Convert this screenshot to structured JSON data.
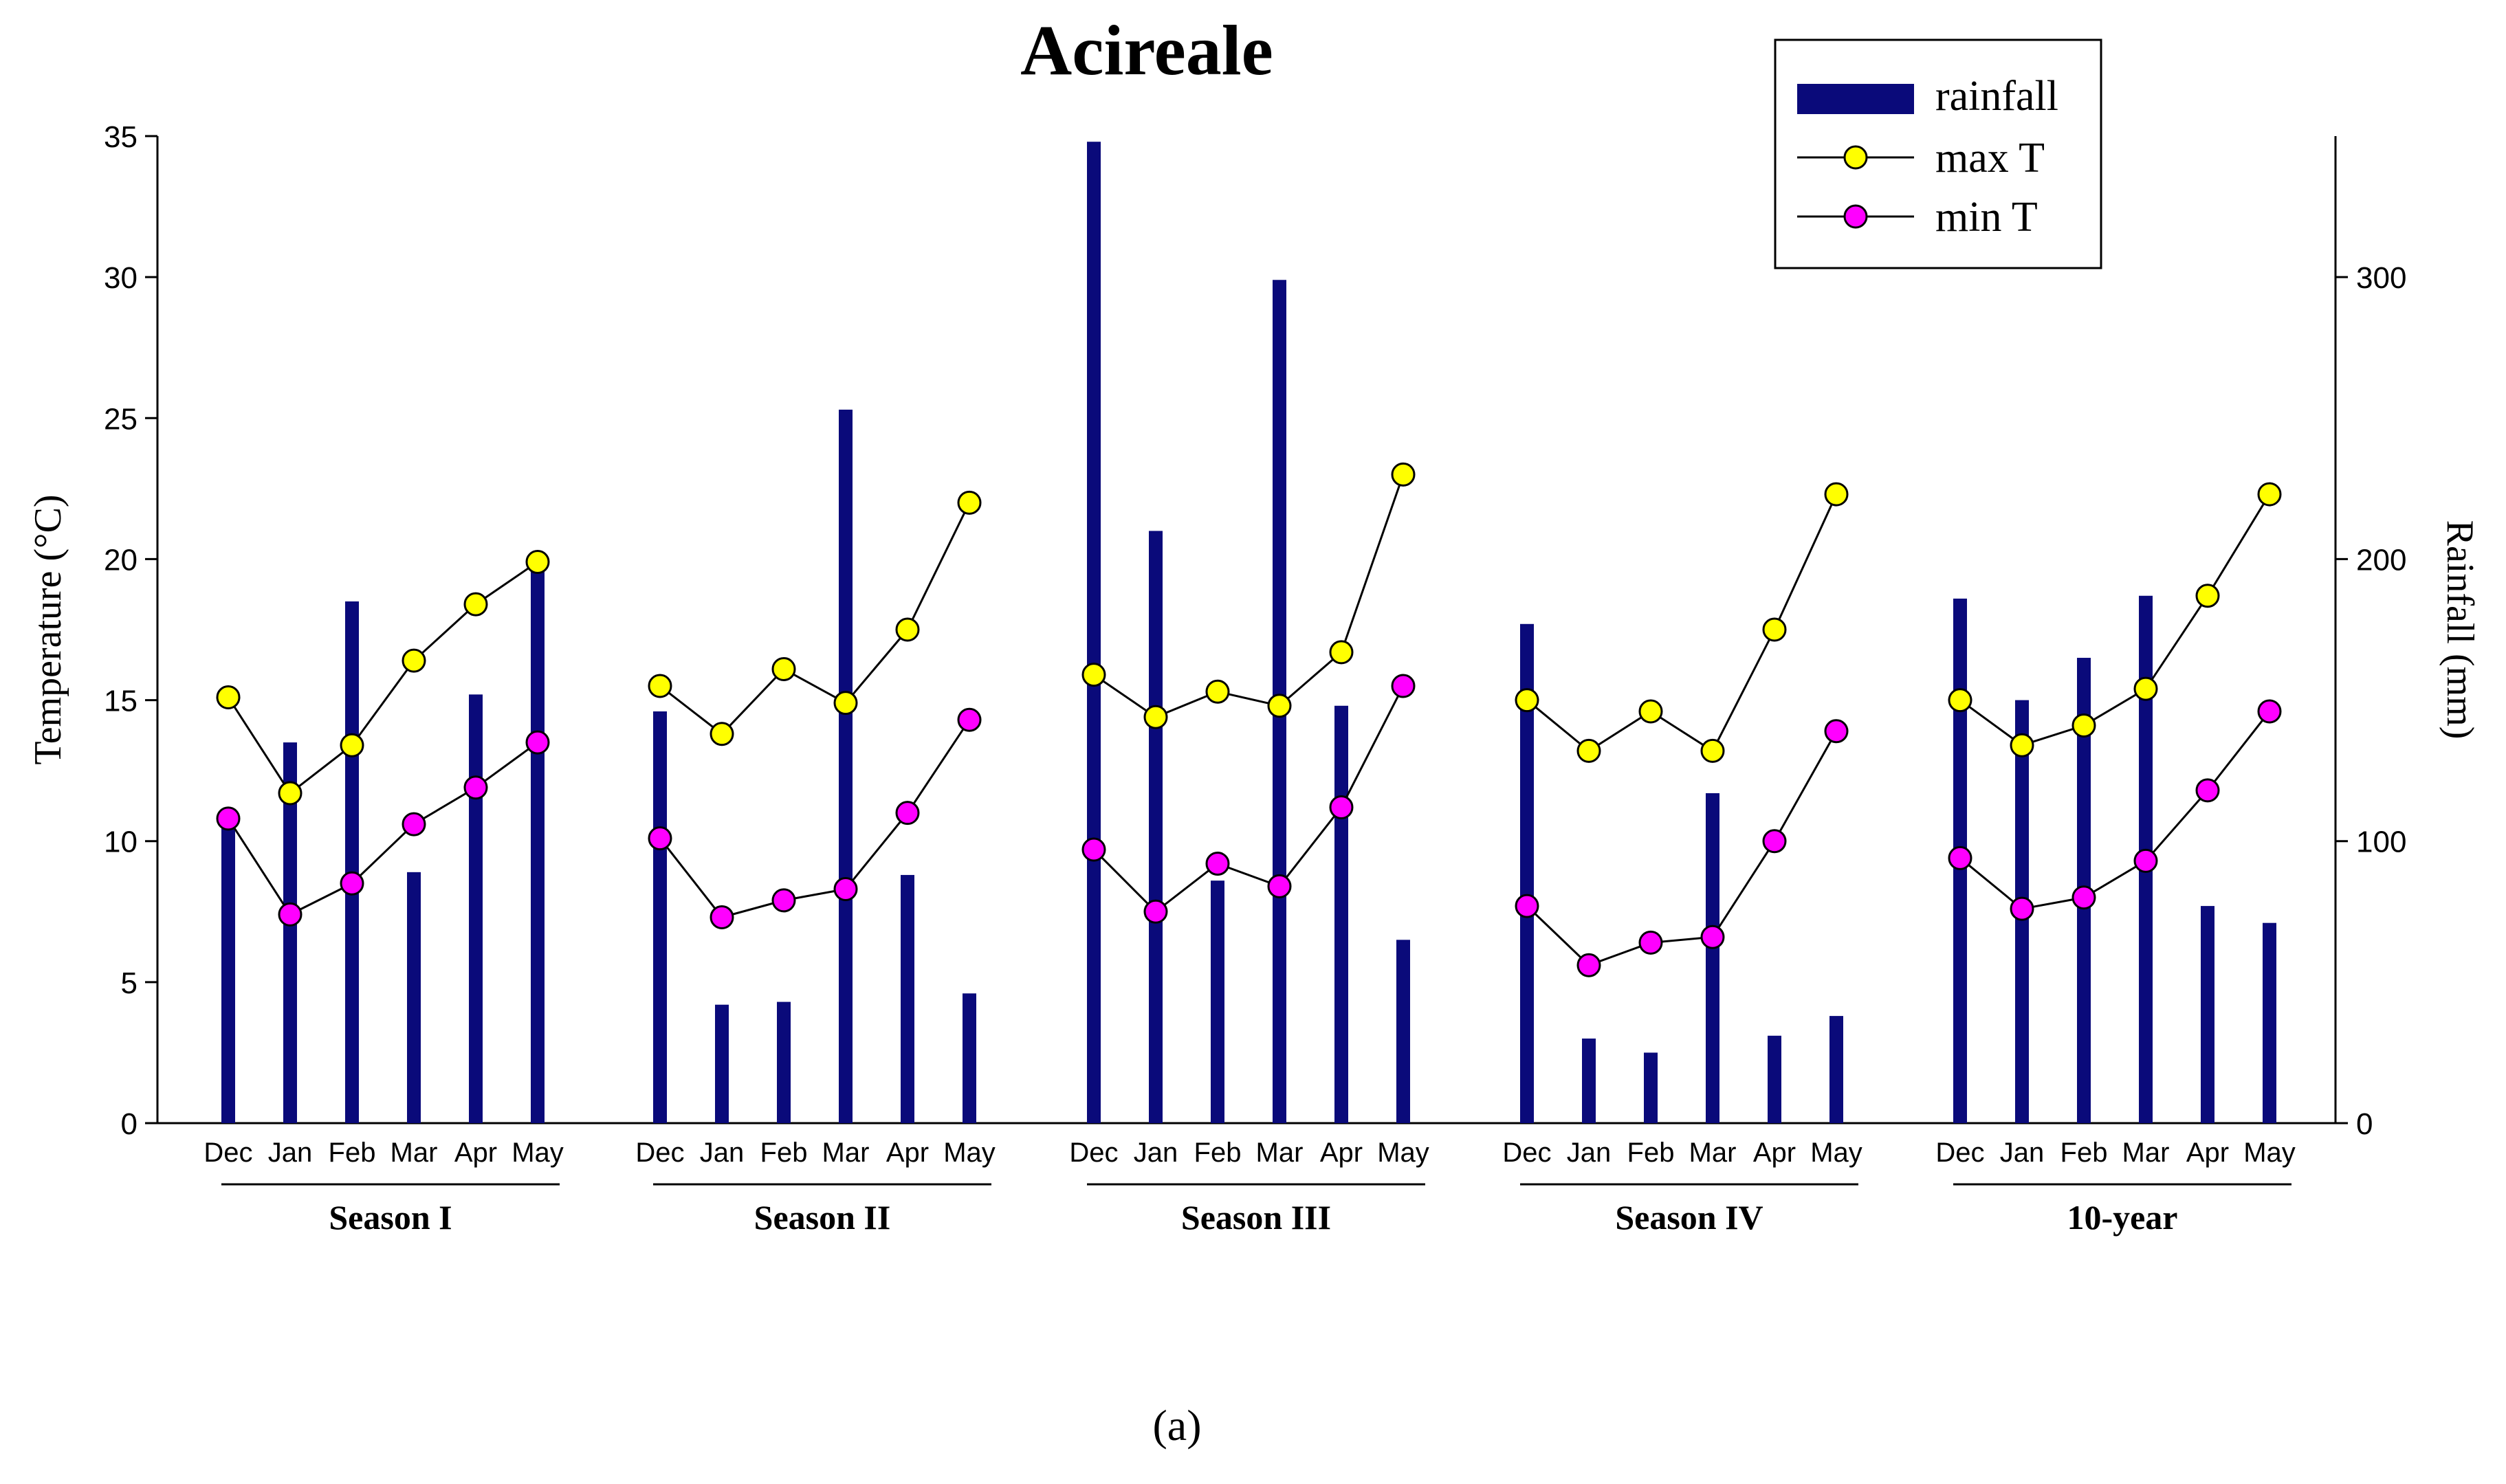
{
  "chart_data": {
    "type": "bar+line",
    "title": "Acireale",
    "panel_label": "(a)",
    "ylabel_left": "Temperature (°C)",
    "ylabel_right": "Rainfall (mm)",
    "ylim_left": [
      0,
      35
    ],
    "ylim_right": [
      0,
      350
    ],
    "yticks_left": [
      0,
      5,
      10,
      15,
      20,
      25,
      30,
      35
    ],
    "yticks_right": [
      0,
      100,
      200,
      300
    ],
    "legend": {
      "position": "top-right",
      "entries": [
        "rainfall",
        "max T",
        "min T"
      ]
    },
    "colors": {
      "rainfall": "#0a0a7a",
      "max_T": "#ffff00",
      "min_T": "#ff00ff",
      "line": "#000000"
    },
    "groups": [
      {
        "name": "Season I",
        "months": [
          "Dec",
          "Jan",
          "Feb",
          "Mar",
          "Apr",
          "May"
        ],
        "rainfall": [
          110,
          135,
          185,
          89,
          152,
          200
        ],
        "max_T": [
          15.1,
          11.7,
          13.4,
          16.4,
          18.4,
          19.9
        ],
        "min_T": [
          10.8,
          7.4,
          8.5,
          10.6,
          11.9,
          13.5
        ]
      },
      {
        "name": "Season II",
        "months": [
          "Dec",
          "Jan",
          "Feb",
          "Mar",
          "Apr",
          "May"
        ],
        "rainfall": [
          146,
          42,
          43,
          253,
          88,
          46
        ],
        "max_T": [
          15.5,
          13.8,
          16.1,
          14.9,
          17.5,
          22.0
        ],
        "min_T": [
          10.1,
          7.3,
          7.9,
          8.3,
          11.0,
          14.3
        ]
      },
      {
        "name": "Season III",
        "months": [
          "Dec",
          "Jan",
          "Feb",
          "Mar",
          "Apr",
          "May"
        ],
        "rainfall": [
          348,
          210,
          86,
          299,
          148,
          65
        ],
        "max_T": [
          15.9,
          14.4,
          15.3,
          14.8,
          16.7,
          23.0
        ],
        "min_T": [
          9.7,
          7.5,
          9.2,
          8.4,
          11.2,
          15.5
        ]
      },
      {
        "name": "Season IV",
        "months": [
          "Dec",
          "Jan",
          "Feb",
          "Mar",
          "Apr",
          "May"
        ],
        "rainfall": [
          177,
          30,
          25,
          117,
          31,
          38
        ],
        "max_T": [
          15.0,
          13.2,
          14.6,
          13.2,
          17.5,
          22.3
        ],
        "min_T": [
          7.7,
          5.6,
          6.4,
          6.6,
          10.0,
          13.9
        ]
      },
      {
        "name": "10-year",
        "months": [
          "Dec",
          "Jan",
          "Feb",
          "Mar",
          "Apr",
          "May"
        ],
        "rainfall": [
          186,
          150,
          165,
          187,
          77,
          71
        ],
        "max_T": [
          15.0,
          13.4,
          14.1,
          15.4,
          18.7,
          22.3
        ],
        "min_T": [
          9.4,
          7.6,
          8.0,
          9.3,
          11.8,
          14.6
        ]
      }
    ]
  }
}
